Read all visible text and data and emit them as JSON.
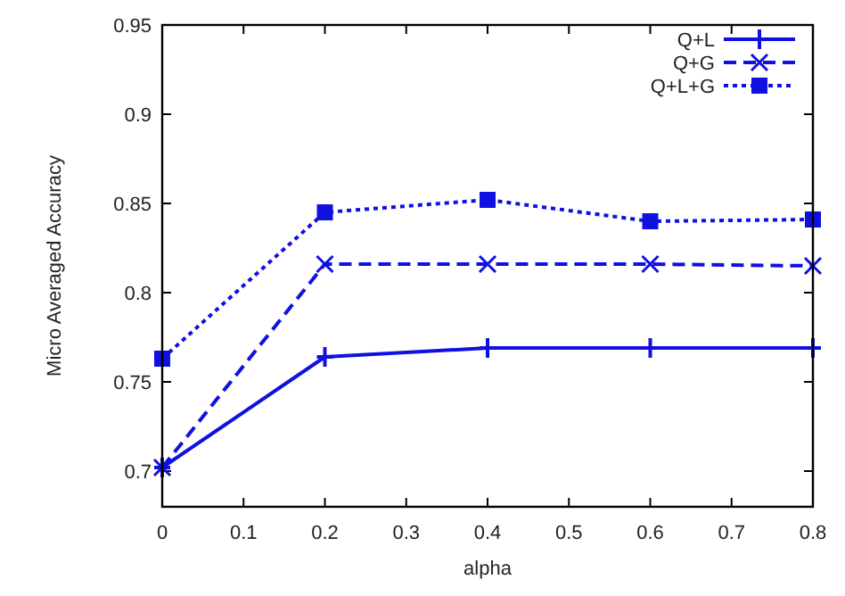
{
  "chart_data": {
    "type": "line",
    "xlabel": "alpha",
    "ylabel": "Micro Averaged Accuracy",
    "x": [
      0,
      0.2,
      0.4,
      0.6,
      0.8
    ],
    "xlim": [
      0,
      0.8
    ],
    "xticks": [
      0,
      0.1,
      0.2,
      0.3,
      0.4,
      0.5,
      0.6,
      0.7,
      0.8
    ],
    "ylim": [
      0.68,
      0.95
    ],
    "yticks": [
      0.7,
      0.75,
      0.8,
      0.85,
      0.9,
      0.95
    ],
    "legend": "top right",
    "grid": false,
    "series": [
      {
        "name": "Q+L",
        "color": "#1010e0",
        "values": [
          0.702,
          0.764,
          0.769,
          0.769,
          0.769
        ],
        "marker": "cross",
        "line_style": "solid"
      },
      {
        "name": "Q+G",
        "color": "#1010e0",
        "values": [
          0.702,
          0.816,
          0.816,
          0.816,
          0.815
        ],
        "marker": "x",
        "line_style": "dashed"
      },
      {
        "name": "Q+L+G",
        "color": "#1010e0",
        "values": [
          0.763,
          0.845,
          0.852,
          0.84,
          0.841
        ],
        "marker": "square",
        "line_style": "dotted"
      }
    ]
  }
}
